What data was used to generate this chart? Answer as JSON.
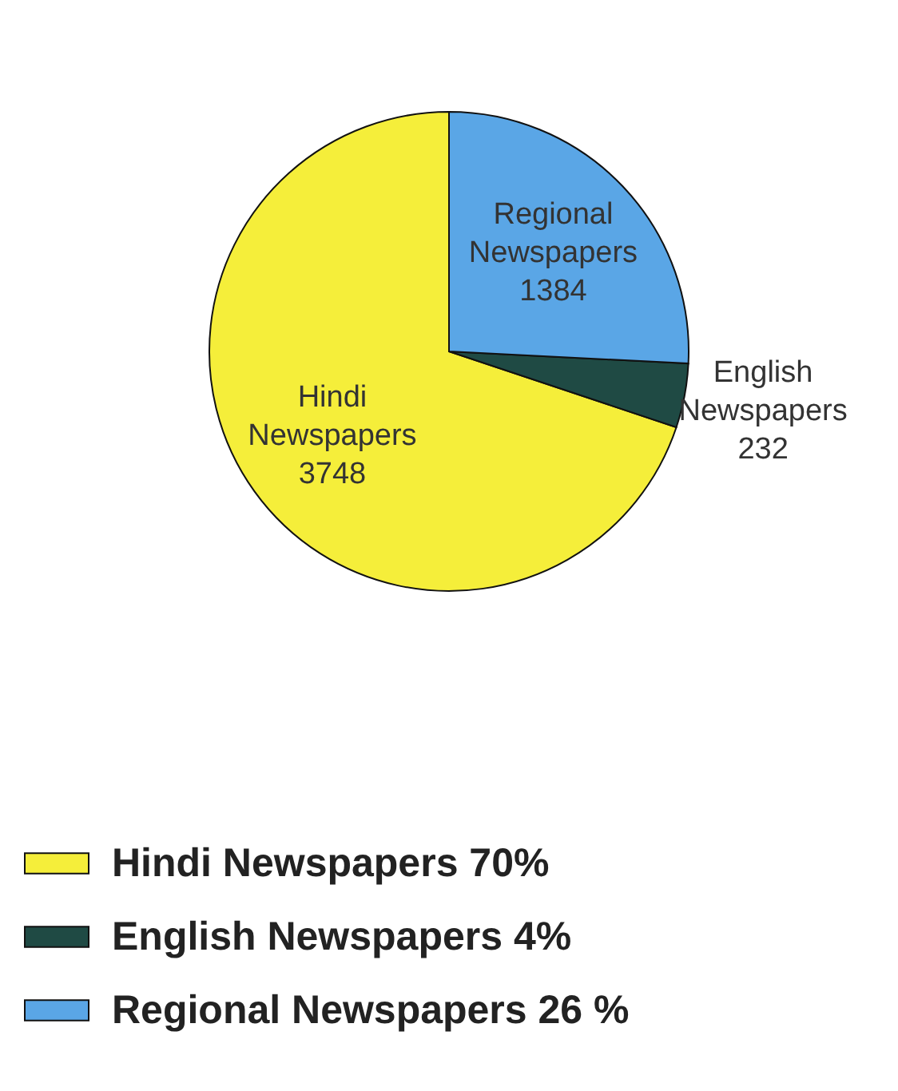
{
  "chart_data": {
    "type": "pie",
    "categories": [
      "Hindi Newspapers 70%",
      "English Newspapers 4%",
      "Regional Newspapers 26 %"
    ],
    "values": [
      3748,
      232,
      1384
    ],
    "colors": [
      "#f5ee3a",
      "#1f4a44",
      "#5aa6e6"
    ],
    "value_labels": [
      "Hindi Newspapers 3748",
      "English Newspapers 232",
      "Regional Newspapers 1384"
    ],
    "legend": "bottom left"
  }
}
